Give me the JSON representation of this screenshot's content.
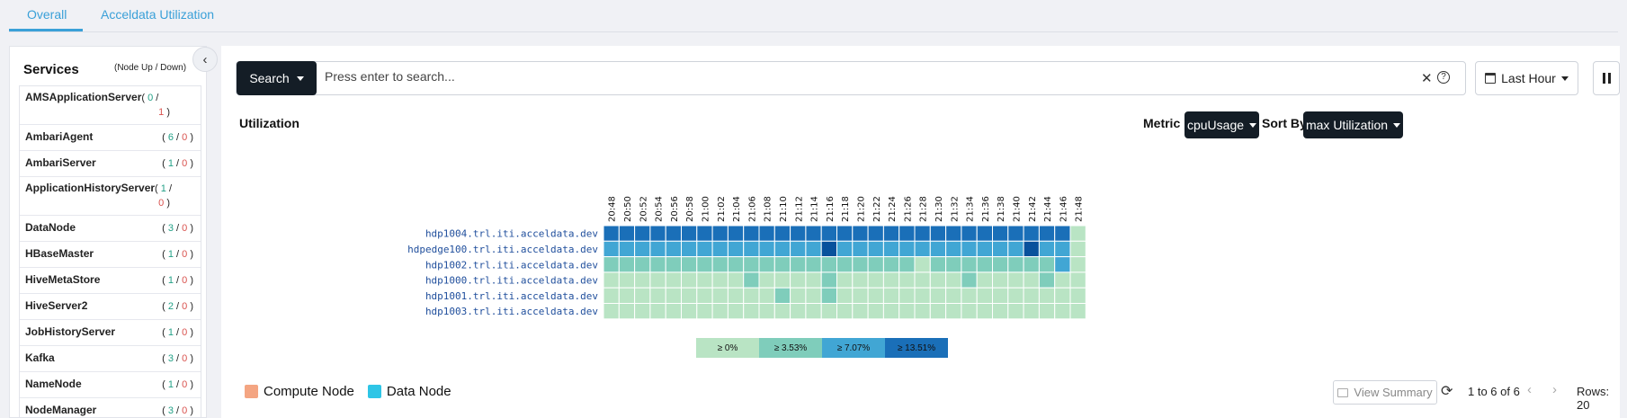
{
  "tabs": [
    {
      "label": "Overall",
      "active": true
    },
    {
      "label": "Acceldata Utilization",
      "active": false
    }
  ],
  "sidebar": {
    "title": "Services",
    "subtitle": "(Node Up / Down)",
    "services": [
      {
        "name": "AMSApplicationServer",
        "up": "0",
        "down": "1"
      },
      {
        "name": "AmbariAgent",
        "up": "6",
        "down": "0"
      },
      {
        "name": "AmbariServer",
        "up": "1",
        "down": "0"
      },
      {
        "name": "ApplicationHistoryServer",
        "up": "1",
        "down": "0"
      },
      {
        "name": "DataNode",
        "up": "3",
        "down": "0"
      },
      {
        "name": "HBaseMaster",
        "up": "1",
        "down": "0"
      },
      {
        "name": "HiveMetaStore",
        "up": "1",
        "down": "0"
      },
      {
        "name": "HiveServer2",
        "up": "2",
        "down": "0"
      },
      {
        "name": "JobHistoryServer",
        "up": "1",
        "down": "0"
      },
      {
        "name": "Kafka",
        "up": "3",
        "down": "0"
      },
      {
        "name": "NameNode",
        "up": "1",
        "down": "0"
      },
      {
        "name": "NodeManager",
        "up": "3",
        "down": "0"
      }
    ]
  },
  "toolbar": {
    "search_button": "Search",
    "search_placeholder": "Press enter to search...",
    "time_range": "Last Hour"
  },
  "utilization": {
    "title": "Utilization",
    "metric_label": "Metric",
    "metric_value": "cpuUsage",
    "sort_label": "Sort By",
    "sort_value": "max Utilization"
  },
  "chart_data": {
    "type": "heatmap",
    "title": "",
    "x": [
      "20:48",
      "20:50",
      "20:52",
      "20:54",
      "20:56",
      "20:58",
      "21:00",
      "21:02",
      "21:04",
      "21:06",
      "21:08",
      "21:10",
      "21:12",
      "21:14",
      "21:16",
      "21:18",
      "21:20",
      "21:22",
      "21:24",
      "21:26",
      "21:28",
      "21:30",
      "21:32",
      "21:34",
      "21:36",
      "21:38",
      "21:40",
      "21:42",
      "21:44",
      "21:46",
      "21:48"
    ],
    "y": [
      "hdp1004.trl.iti.acceldata.dev",
      "hdpedge100.trl.iti.acceldata.dev",
      "hdp1002.trl.iti.acceldata.dev",
      "hdp1000.trl.iti.acceldata.dev",
      "hdp1001.trl.iti.acceldata.dev",
      "hdp1003.trl.iti.acceldata.dev"
    ],
    "bins": [
      "≥ 0%",
      "≥ 3.53%",
      "≥ 7.07%",
      "≥ 13.51%"
    ],
    "bin_colors": [
      "#b9e4c4",
      "#7fcdbb",
      "#41a6d4",
      "#1a6fb8"
    ],
    "extra_color": "#08519c",
    "levels": [
      [
        3,
        3,
        3,
        3,
        3,
        3,
        3,
        3,
        3,
        3,
        3,
        3,
        3,
        3,
        3,
        3,
        3,
        3,
        3,
        3,
        3,
        3,
        3,
        3,
        3,
        3,
        3,
        3,
        3,
        3,
        0
      ],
      [
        2,
        2,
        2,
        2,
        2,
        2,
        2,
        2,
        2,
        2,
        2,
        2,
        2,
        2,
        4,
        2,
        2,
        2,
        2,
        2,
        2,
        2,
        2,
        2,
        2,
        2,
        2,
        4,
        2,
        2,
        0
      ],
      [
        1,
        1,
        1,
        1,
        1,
        1,
        1,
        1,
        1,
        1,
        1,
        1,
        1,
        1,
        1,
        1,
        1,
        1,
        1,
        1,
        0,
        1,
        1,
        1,
        1,
        1,
        1,
        1,
        1,
        2,
        0
      ],
      [
        0,
        0,
        0,
        0,
        0,
        0,
        0,
        0,
        0,
        1,
        0,
        0,
        0,
        0,
        1,
        0,
        0,
        0,
        0,
        0,
        0,
        0,
        0,
        1,
        0,
        0,
        0,
        0,
        1,
        0,
        0
      ],
      [
        0,
        0,
        0,
        0,
        0,
        0,
        0,
        0,
        0,
        0,
        0,
        1,
        0,
        0,
        1,
        0,
        0,
        0,
        0,
        0,
        0,
        0,
        0,
        0,
        0,
        0,
        0,
        0,
        0,
        0,
        0
      ],
      [
        0,
        0,
        0,
        0,
        0,
        0,
        0,
        0,
        0,
        0,
        0,
        0,
        0,
        0,
        0,
        0,
        0,
        0,
        0,
        0,
        0,
        0,
        0,
        0,
        0,
        0,
        0,
        0,
        0,
        0,
        0
      ]
    ]
  },
  "node_legend": [
    {
      "label": "Compute Node",
      "color": "#f4a582"
    },
    {
      "label": "Data Node",
      "color": "#2ec5e6"
    }
  ],
  "footer": {
    "view_summary": "View Summary",
    "pager": "1 to 6 of 6",
    "rows": "Rows: 20"
  }
}
